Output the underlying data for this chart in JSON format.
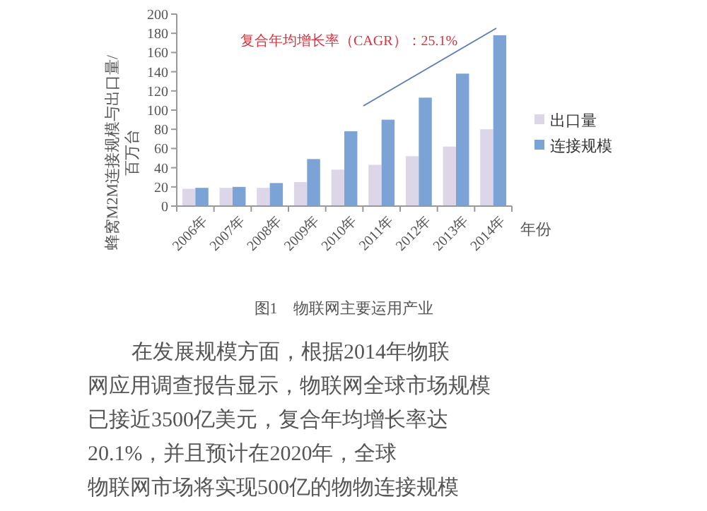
{
  "chart_data": {
    "type": "bar",
    "ylabel": "蜂窝M2M连接规模与出口量/百万台",
    "xlabel": "年份",
    "categories": [
      "2006年",
      "2007年",
      "2008年",
      "2009年",
      "2010年",
      "2011年",
      "2012年",
      "2013年",
      "2014年"
    ],
    "series": [
      {
        "name": "出口量",
        "color": "#dcd6e8",
        "values": [
          18,
          19,
          19,
          25,
          38,
          43,
          52,
          62,
          80
        ]
      },
      {
        "name": "连接规模",
        "color": "#7ba3d6",
        "values": [
          19,
          20,
          24,
          49,
          78,
          90,
          113,
          138,
          178
        ]
      }
    ],
    "ylim": [
      0,
      200
    ],
    "yticks": [
      0,
      20,
      40,
      60,
      80,
      100,
      120,
      140,
      160,
      180,
      200
    ],
    "grid": false,
    "legend": "right",
    "annotations": [
      "复合年均增长率（CAGR）：25.1%",
      "图1　物联网主要运用产业",
      "在发展规模方面，根据2014年物联网应用调查报告显示，物联网全球市场规模已接近3500亿美元，复合年均增长率达20.1%，并且预计在2020年，全球物联网市场将实现500亿的物物连接规模"
    ]
  }
}
